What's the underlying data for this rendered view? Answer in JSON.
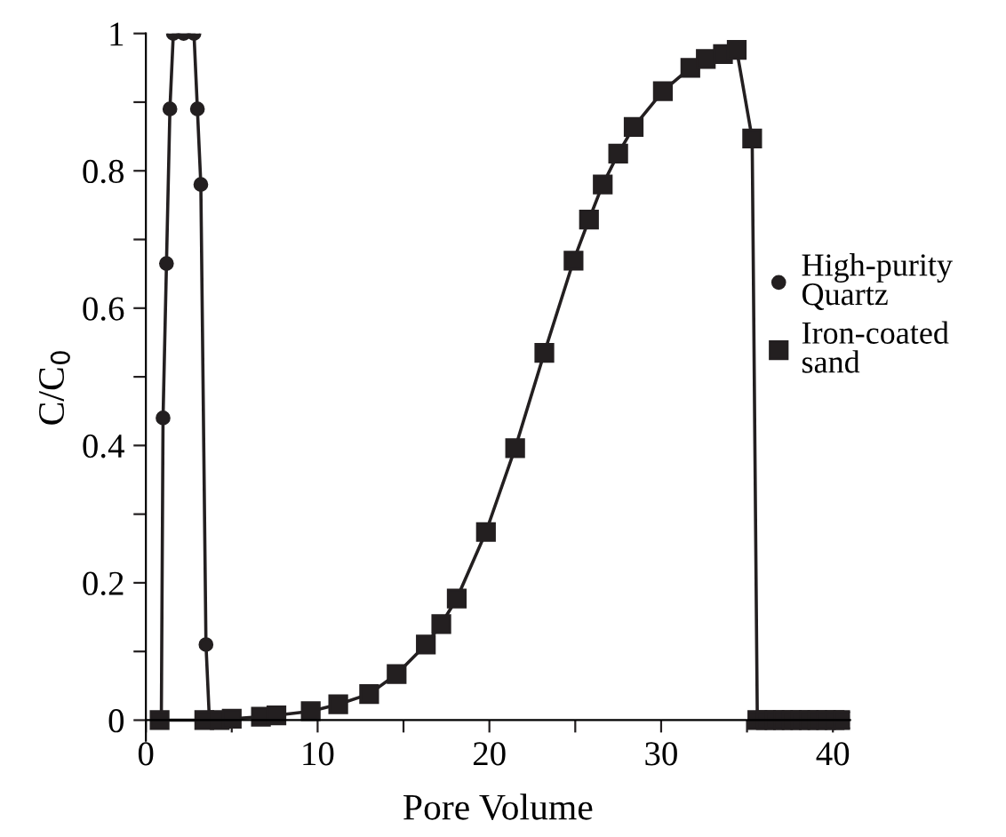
{
  "chart_data": {
    "type": "line",
    "xlabel": "Pore Volume",
    "ylabel": "C/C$_{0}$",
    "xlim": [
      0,
      41
    ],
    "ylim": [
      -0.03,
      1
    ],
    "xticks": [
      0,
      {
        "value": 5,
        "label": null
      },
      10,
      {
        "value": 15,
        "label": null
      },
      20,
      {
        "value": 25,
        "label": null
      },
      30,
      {
        "value": 35,
        "label": null
      },
      40
    ],
    "yticks": [
      0,
      {
        "value": 0.1,
        "label": null
      },
      0.2,
      {
        "value": 0.3,
        "label": null
      },
      0.4,
      {
        "value": 0.5,
        "label": null
      },
      0.6,
      {
        "value": 0.7,
        "label": null
      },
      0.8,
      {
        "value": 0.9,
        "label": null
      },
      1
    ],
    "legend": "right",
    "grid": false,
    "line_style": "solid",
    "series": [
      {
        "name": "High-purity Quartz",
        "color": "#231f20",
        "marker": "circle",
        "x": [
          0.9,
          1.0,
          1.2,
          1.4,
          1.6,
          2.2,
          2.8,
          3.0,
          3.2,
          3.5,
          3.7
        ],
        "values": [
          0,
          0.44,
          0.665,
          0.89,
          1,
          1,
          1,
          0.89,
          0.78,
          0.11,
          0
        ]
      },
      {
        "name": "Iron-coated sand",
        "color": "#231f20",
        "marker": "square",
        "x": [
          0.8,
          3.4,
          4.3,
          5.0,
          6.7,
          7.6,
          9.6,
          11.2,
          13.0,
          14.6,
          16.3,
          17.2,
          18.1,
          19.8,
          21.5,
          23.2,
          24.9,
          25.8,
          26.6,
          27.5,
          28.4,
          30.1,
          31.7,
          32.6,
          33.6,
          34.4,
          35.3,
          35.6,
          36.1,
          36.6,
          37.1,
          37.6,
          38.1,
          38.6,
          39.1,
          39.6,
          40.1,
          40.6
        ],
        "values": [
          0,
          0,
          0,
          0.002,
          0.005,
          0.007,
          0.013,
          0.023,
          0.038,
          0.067,
          0.11,
          0.14,
          0.177,
          0.274,
          0.396,
          0.535,
          0.669,
          0.729,
          0.78,
          0.825,
          0.864,
          0.916,
          0.95,
          0.963,
          0.97,
          0.976,
          0.847,
          0,
          0,
          0,
          0,
          0,
          0,
          0,
          0,
          0,
          0,
          0
        ]
      }
    ]
  }
}
